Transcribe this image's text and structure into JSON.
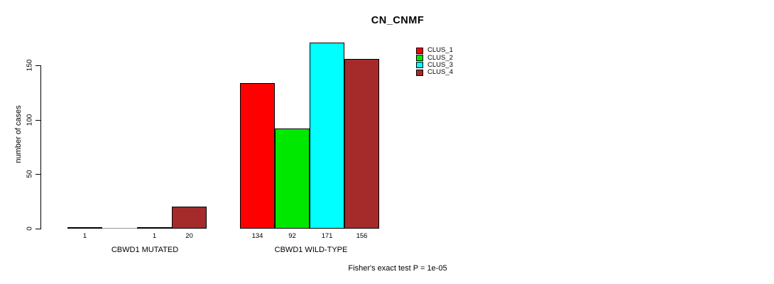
{
  "chart_data": {
    "type": "bar",
    "title": "CN_CNMF",
    "ylabel": "number of cases",
    "xlabel": "",
    "ylim": [
      0,
      175
    ],
    "yticks": [
      0,
      50,
      100,
      150
    ],
    "grid": false,
    "legend_position": "top-right",
    "categories": [
      "CBWD1 MUTATED",
      "CBWD1 WILD-TYPE"
    ],
    "series": [
      {
        "name": "CLUS_1",
        "color": "#FF0000",
        "values": [
          1,
          134
        ]
      },
      {
        "name": "CLUS_2",
        "color": "#00E800",
        "values": [
          0,
          92
        ]
      },
      {
        "name": "CLUS_3",
        "color": "#00FFFF",
        "values": [
          1,
          171
        ]
      },
      {
        "name": "CLUS_4",
        "color": "#A52A2A",
        "values": [
          20,
          156
        ]
      }
    ],
    "bar_value_labels": [
      [
        "1",
        "",
        "1",
        "20"
      ],
      [
        "134",
        "92",
        "171",
        "156"
      ]
    ],
    "annotation": "Fisher's exact test P = 1e-05"
  }
}
